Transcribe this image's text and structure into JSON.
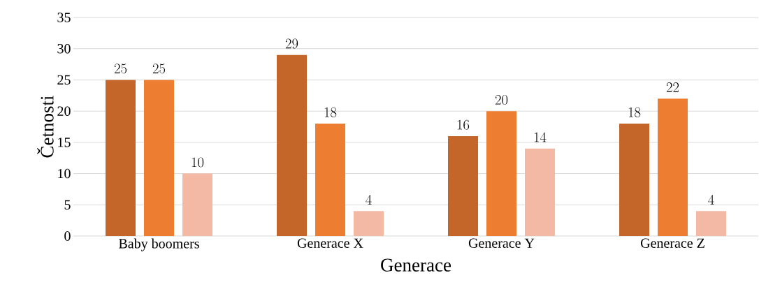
{
  "chart_data": {
    "type": "bar",
    "xlabel": "Generace",
    "ylabel": "Četnosti",
    "categories": [
      "Baby boomers",
      "Generace X",
      "Generace Y",
      "Generace Z"
    ],
    "series": [
      {
        "color": "#c4652a",
        "values": [
          25,
          29,
          16,
          18
        ]
      },
      {
        "color": "#ed7d31",
        "values": [
          25,
          18,
          20,
          22
        ]
      },
      {
        "color": "#f4b9a4",
        "values": [
          10,
          4,
          14,
          4
        ]
      }
    ],
    "ylim": [
      0,
      35
    ],
    "yticks": [
      0,
      5,
      10,
      15,
      20,
      25,
      30,
      35
    ],
    "grid": "y",
    "data_labels": true
  }
}
